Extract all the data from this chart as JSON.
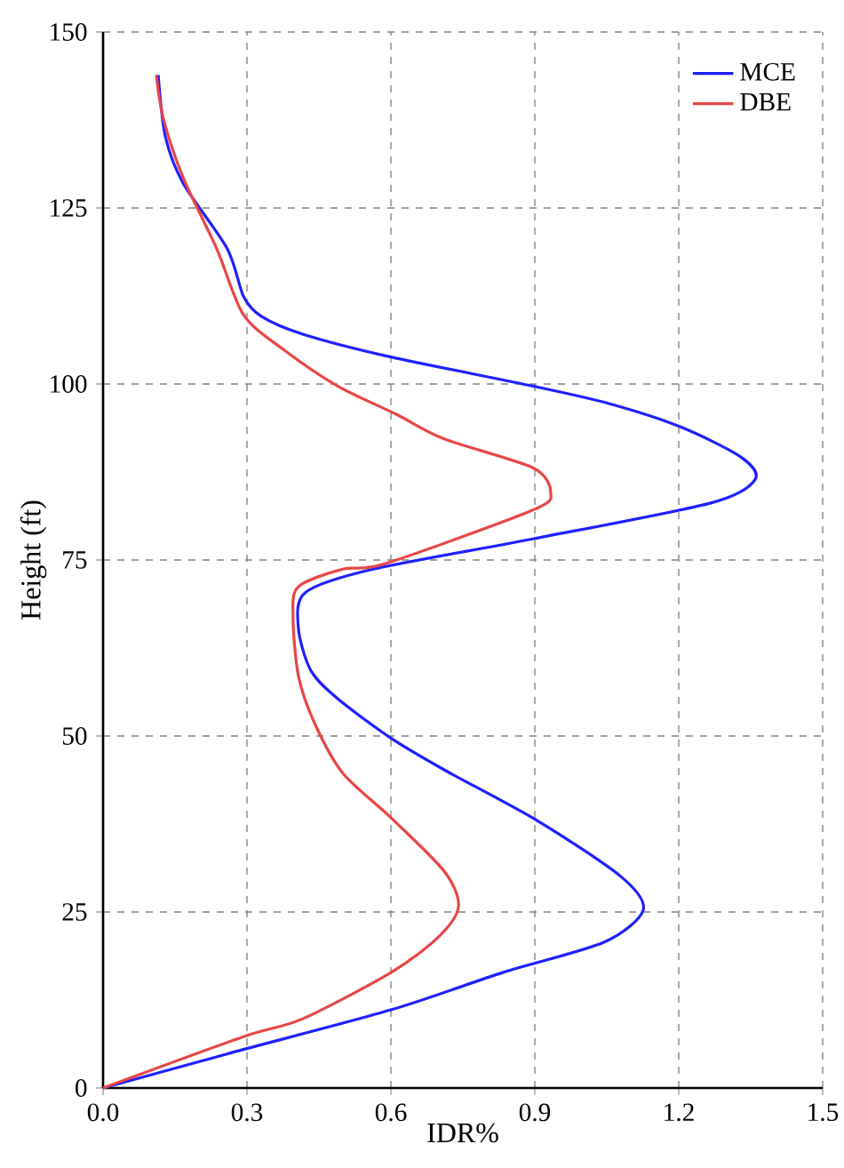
{
  "chart_data": {
    "type": "line",
    "xlabel": "IDR%",
    "ylabel": "Height (ft)",
    "xlim": [
      0,
      1.5
    ],
    "ylim": [
      0,
      150
    ],
    "xticks": [
      {
        "value": 0,
        "label": "0.0"
      },
      0.3,
      0.6,
      0.9,
      1.2,
      1.5
    ],
    "yticks": [
      0,
      25,
      50,
      75,
      100,
      125,
      150
    ],
    "grid": true,
    "legend": "top right",
    "marker": "none",
    "line_style": "solid",
    "series": [
      {
        "name": "MCE",
        "color": "#1f1fff",
        "x": [
          0,
          0.267,
          0.6,
          0.833,
          1.044,
          1.126,
          1.08,
          0.907,
          0.711,
          0.6,
          0.489,
          0.433,
          0.407,
          0.422,
          0.563,
          0.896,
          1.267,
          1.359,
          1.33,
          1.204,
          1.056,
          0.896,
          0.589,
          0.415,
          0.33,
          0.293,
          0.259,
          0.167,
          0.13,
          0.115
        ],
        "values": [
          0,
          5.0,
          11.1,
          16.4,
          20.7,
          25.3,
          30.0,
          37.9,
          45.2,
          49.7,
          55.3,
          59.3,
          65.4,
          70.4,
          73.7,
          78.0,
          83.1,
          86.4,
          89.6,
          93.9,
          97.2,
          99.7,
          104.0,
          107.1,
          109.6,
          112.4,
          119.2,
          128.5,
          135.1,
          143.9
        ]
      },
      {
        "name": "DBE",
        "color": "#e84646",
        "x": [
          0,
          0.293,
          0.415,
          0.6,
          0.7,
          0.741,
          0.711,
          0.6,
          0.5,
          0.441,
          0.407,
          0.396,
          0.407,
          0.5,
          0.589,
          0.896,
          0.933,
          0.896,
          0.711,
          0.611,
          0.489,
          0.378,
          0.293,
          0.237,
          0.167,
          0.126,
          0.111
        ],
        "values": [
          0,
          7.3,
          9.8,
          16.4,
          21.5,
          25.8,
          30.8,
          38.4,
          44.7,
          51.8,
          58.6,
          66.9,
          71.2,
          73.7,
          74.5,
          82.1,
          84.6,
          88.1,
          92.2,
          95.7,
          99.7,
          104.8,
          109.8,
          119.2,
          129.3,
          137.6,
          143.9
        ]
      }
    ]
  }
}
